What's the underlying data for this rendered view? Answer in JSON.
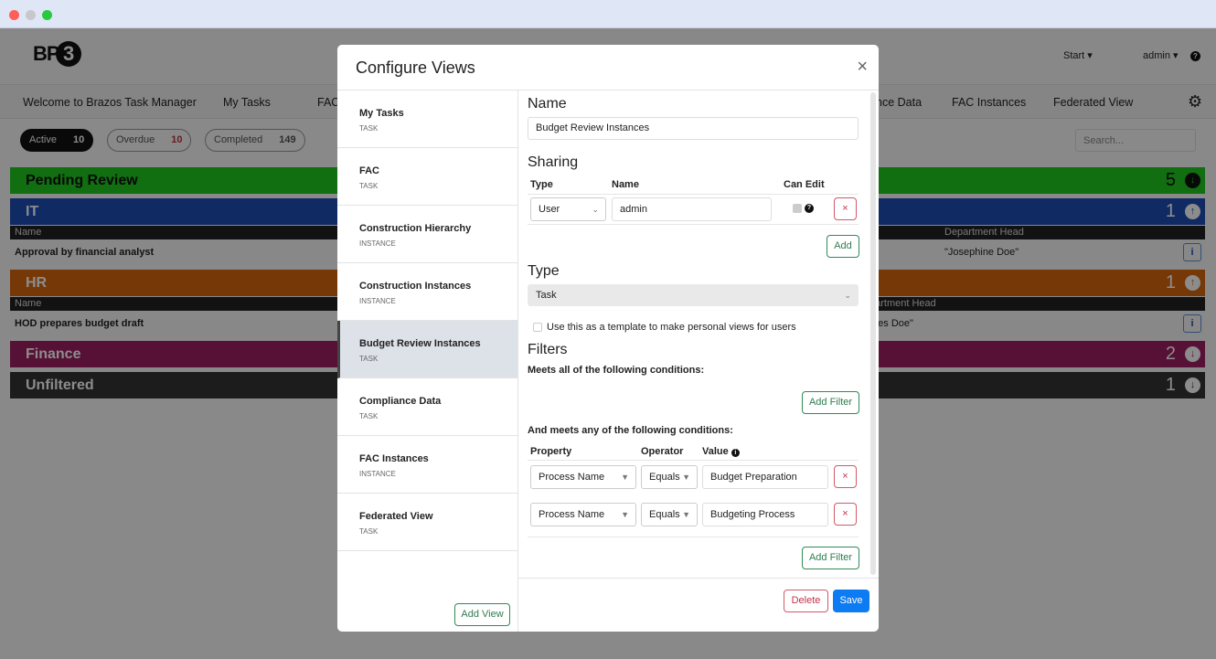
{
  "window": {
    "dots": [
      "#fe5f57",
      "#febc2e",
      "#28c840"
    ]
  },
  "header": {
    "logo": "BP3",
    "start": "Start ▾",
    "user": "admin ▾",
    "help_icon": "question-circle"
  },
  "nav": {
    "items": [
      "Welcome to Brazos Task Manager",
      "My Tasks",
      "FAC",
      "nce Data",
      "FAC Instances",
      "Federated View"
    ],
    "settings_icon": "gear"
  },
  "filters": {
    "active": {
      "label": "Active",
      "count": "10"
    },
    "overdue": {
      "label": "Overdue",
      "count": "10"
    },
    "completed": {
      "label": "Completed",
      "count": "149"
    },
    "search_placeholder": "Search..."
  },
  "groups": [
    {
      "name": "Pending Review",
      "count": "5",
      "color": "#1fc81f",
      "dir": "down"
    },
    {
      "name": "IT",
      "count": "1",
      "color": "#1e4db7",
      "dir": "up",
      "col1": "Name",
      "col2": "Department Head",
      "row_name": "Approval by financial analyst",
      "row_head": "\"Josephine Doe\""
    },
    {
      "name": "HR",
      "count": "1",
      "color": "#d9660f",
      "dir": "up",
      "col1": "Name",
      "col2": "partment Head",
      "row_name": "HOD prepares budget draft",
      "row_head": "mes Doe\""
    },
    {
      "name": "Finance",
      "count": "2",
      "color": "#9e1f63",
      "dir": "down"
    },
    {
      "name": "Unfiltered",
      "count": "1",
      "color": "#333333",
      "dir": "down"
    }
  ],
  "modal": {
    "title": "Configure Views",
    "close": "×",
    "views": [
      {
        "name": "My Tasks",
        "type": "TASK"
      },
      {
        "name": "FAC",
        "type": "TASK"
      },
      {
        "name": "Construction Hierarchy",
        "type": "INSTANCE"
      },
      {
        "name": "Construction Instances",
        "type": "INSTANCE"
      },
      {
        "name": "Budget Review Instances",
        "type": "TASK"
      },
      {
        "name": "Compliance Data",
        "type": "TASK"
      },
      {
        "name": "FAC Instances",
        "type": "INSTANCE"
      },
      {
        "name": "Federated View",
        "type": "TASK"
      }
    ],
    "selected_view": "Budget Review Instances",
    "add_view": "Add View",
    "name_heading": "Name",
    "name_value": "Budget Review Instances",
    "sharing": {
      "heading": "Sharing",
      "col_type": "Type",
      "col_name": "Name",
      "col_can_edit": "Can Edit",
      "type_value": "User",
      "name_value": "admin",
      "can_edit": true,
      "remove": "×",
      "add": "Add"
    },
    "type": {
      "heading": "Type",
      "value": "Task",
      "template_label": "Use this as a template to make personal views for users",
      "template_checked": false
    },
    "filters": {
      "heading": "Filters",
      "all_label": "Meets all of the following conditions:",
      "add_filter": "Add Filter",
      "any_label": "And meets any of the following conditions:",
      "col_property": "Property",
      "col_operator": "Operator",
      "col_value": "Value",
      "rows": [
        {
          "property": "Process Name",
          "operator": "Equals",
          "value": "Budget Preparation"
        },
        {
          "property": "Process Name",
          "operator": "Equals",
          "value": "Budgeting Process"
        }
      ]
    },
    "delete": "Delete",
    "save": "Save"
  }
}
